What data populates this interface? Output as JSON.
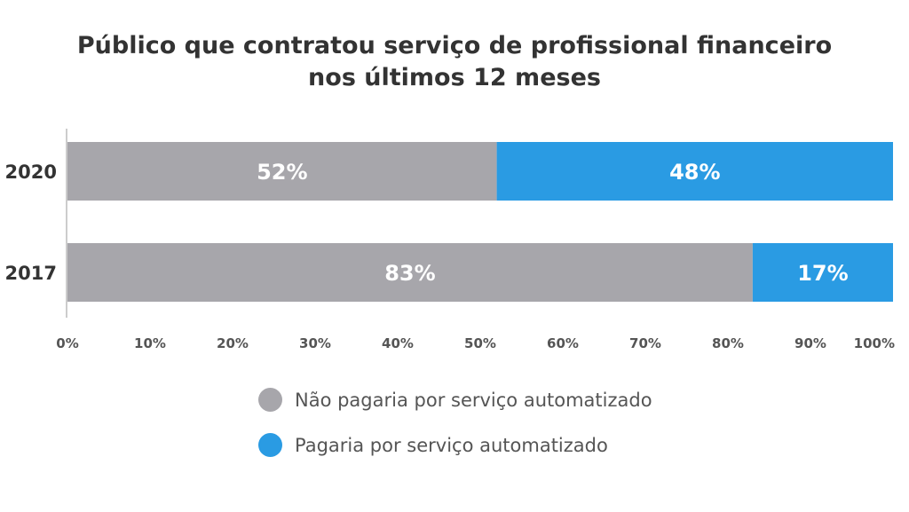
{
  "title_lines": [
    "Público que contratou serviço de profissional financeiro",
    "nos últimos 12 meses"
  ],
  "colors": {
    "nao": "#a7a6ab",
    "sim": "#2a9be3",
    "axis": "#cccccc",
    "text": "#555555"
  },
  "chart_data": {
    "type": "bar",
    "orientation": "horizontal",
    "stacked": true,
    "categories": [
      "2020",
      "2017"
    ],
    "series": [
      {
        "name": "Não pagaria por serviço automatizado",
        "values": [
          52,
          83
        ],
        "color": "#a7a6ab"
      },
      {
        "name": "Pagaria por serviço automatizado",
        "values": [
          48,
          17
        ],
        "color": "#2a9be3"
      }
    ],
    "data_labels": [
      [
        "52%",
        "83%"
      ],
      [
        "48%",
        "17%"
      ]
    ],
    "xlim": [
      0,
      100
    ],
    "x_ticks": [
      "0%",
      "10%",
      "20%",
      "30%",
      "40%",
      "50%",
      "60%",
      "70%",
      "80%",
      "90%",
      "100%"
    ],
    "legend_position": "bottom",
    "grid": false
  }
}
